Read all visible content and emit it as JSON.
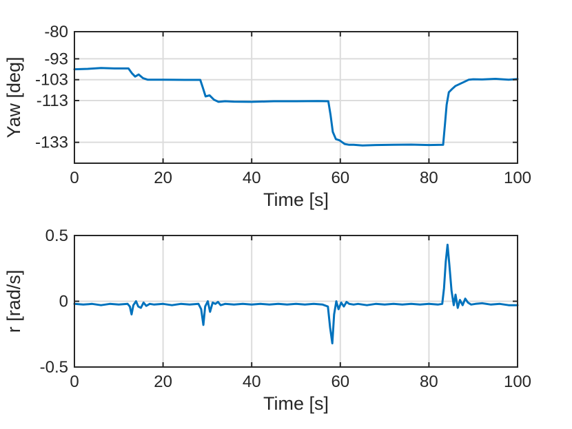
{
  "chart_data": [
    {
      "type": "line",
      "title": "",
      "xlabel": "Time [s]",
      "ylabel": "Yaw [deg]",
      "xlim": [
        0,
        100
      ],
      "ylim": [
        -143,
        -80
      ],
      "xticks": [
        "0",
        "20",
        "40",
        "60",
        "80",
        "100"
      ],
      "yticks": [
        {
          "value": -80,
          "label": "-80"
        },
        {
          "value": -93,
          "label": "-93"
        },
        {
          "value": -103,
          "label": "-103"
        },
        {
          "value": -113,
          "label": "-113"
        },
        {
          "value": -133,
          "label": "-133"
        }
      ],
      "grid": true,
      "line_color": "#0072BD",
      "x": [
        0,
        3,
        6,
        9,
        12.2,
        13,
        13.7,
        14.5,
        15.5,
        16.5,
        20,
        25,
        28.4,
        29,
        29.6,
        30.5,
        31.5,
        32.5,
        34,
        36,
        40,
        45,
        50,
        55,
        57.3,
        57.8,
        58.3,
        59,
        59.8,
        61,
        62,
        63,
        65,
        68,
        72,
        76,
        80,
        83.2,
        83.6,
        84,
        84.5,
        85.2,
        86,
        87,
        88,
        89,
        90,
        92,
        95,
        98,
        100
      ],
      "y": [
        -98,
        -97.8,
        -97.4,
        -97.6,
        -97.6,
        -100,
        -101.5,
        -100.5,
        -102.3,
        -103,
        -103,
        -103.1,
        -103.1,
        -107,
        -111,
        -110.5,
        -112.6,
        -113.6,
        -113.3,
        -113.5,
        -113.6,
        -113.3,
        -113.3,
        -113.2,
        -113.3,
        -120,
        -128,
        -131.5,
        -132,
        -133.8,
        -134.2,
        -134.2,
        -134.5,
        -134.3,
        -134.2,
        -134.1,
        -134.3,
        -134.2,
        -125,
        -115,
        -109,
        -107.5,
        -106,
        -105,
        -104,
        -103,
        -102.8,
        -102.9,
        -102.6,
        -103,
        -102.7
      ]
    },
    {
      "type": "line",
      "title": "",
      "xlabel": "Time [s]",
      "ylabel": "r [rad/s]",
      "xlim": [
        0,
        100
      ],
      "ylim": [
        -0.5,
        0.5
      ],
      "xticks": [
        "0",
        "20",
        "40",
        "60",
        "80",
        "100"
      ],
      "yticks": [
        {
          "value": 0.5,
          "label": "0.5"
        },
        {
          "value": 0,
          "label": "0"
        },
        {
          "value": -0.5,
          "label": "-0.5"
        }
      ],
      "grid": true,
      "line_color": "#0072BD",
      "x": [
        0,
        2,
        4,
        6,
        8,
        10,
        12,
        12.5,
        12.9,
        13.3,
        13.9,
        14.4,
        15,
        15.6,
        16.2,
        17,
        18,
        20,
        22,
        24,
        26,
        28,
        28.6,
        29.1,
        29.5,
        30.1,
        30.6,
        31.2,
        31.8,
        32.4,
        33,
        34,
        36,
        38,
        40,
        42,
        44,
        46,
        48,
        50,
        52,
        54,
        56,
        57.2,
        57.7,
        58.2,
        58.6,
        59.1,
        59.6,
        60.2,
        60.8,
        61.4,
        62,
        63,
        64,
        66,
        68,
        70,
        72,
        74,
        76,
        78,
        80,
        82,
        83,
        83.4,
        83.8,
        84.2,
        84.6,
        85.1,
        85.6,
        86,
        86.5,
        87,
        87.6,
        88.2,
        88.8,
        89.5,
        90.5,
        92,
        94,
        96,
        98,
        100
      ],
      "y": [
        -0.02,
        -0.025,
        -0.02,
        -0.03,
        -0.02,
        -0.025,
        -0.02,
        -0.04,
        -0.1,
        -0.03,
        0.0,
        -0.04,
        -0.05,
        -0.01,
        -0.035,
        -0.02,
        -0.025,
        -0.02,
        -0.03,
        -0.02,
        -0.025,
        -0.02,
        -0.06,
        -0.18,
        -0.04,
        0.0,
        -0.08,
        -0.01,
        -0.02,
        -0.005,
        -0.03,
        -0.02,
        -0.025,
        -0.02,
        -0.025,
        -0.02,
        -0.025,
        -0.02,
        -0.025,
        -0.02,
        -0.025,
        -0.02,
        -0.025,
        -0.04,
        -0.2,
        -0.32,
        -0.1,
        0.0,
        -0.06,
        -0.01,
        -0.04,
        -0.005,
        -0.02,
        -0.025,
        -0.02,
        -0.03,
        -0.02,
        -0.025,
        -0.02,
        -0.025,
        -0.02,
        -0.025,
        -0.02,
        -0.025,
        -0.02,
        0.1,
        0.3,
        0.43,
        0.28,
        0.08,
        -0.03,
        0.05,
        -0.05,
        0.01,
        -0.03,
        0.02,
        -0.01,
        -0.025,
        -0.02,
        -0.015,
        -0.025,
        -0.02,
        -0.03,
        -0.03
      ]
    }
  ]
}
